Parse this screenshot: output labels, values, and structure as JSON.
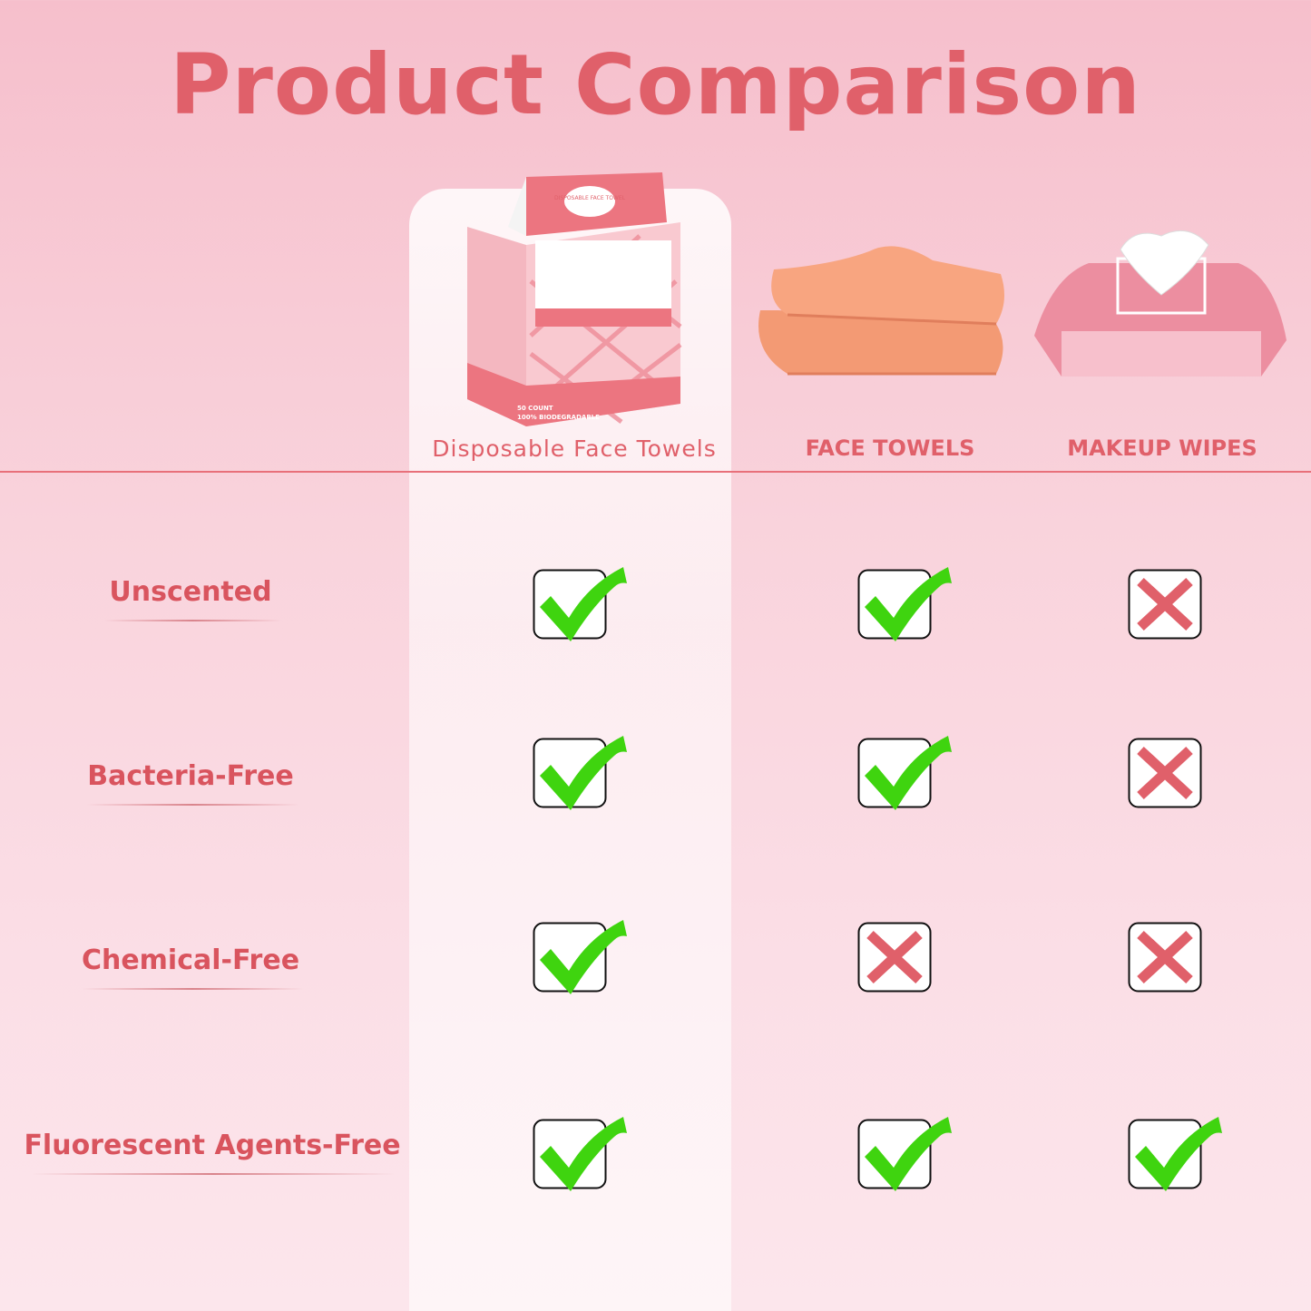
{
  "title": "Product Comparison",
  "columns": [
    {
      "label": "Disposable Face Towels",
      "image": "disposable-face-towel-box",
      "box_text": [
        "DISPOSABLE FACE TOWEL",
        "50 COUNT",
        "100% BIODEGRADABLE"
      ]
    },
    {
      "label": "FACE TOWELS",
      "image": "folded-orange-towels"
    },
    {
      "label": "MAKEUP WIPES",
      "image": "pink-wipes-pack"
    }
  ],
  "rows": [
    {
      "label": "Unscented",
      "values": [
        true,
        true,
        false
      ]
    },
    {
      "label": "Bacteria-Free",
      "values": [
        true,
        true,
        false
      ]
    },
    {
      "label": "Chemical-Free",
      "values": [
        true,
        false,
        false
      ]
    },
    {
      "label": "Fluorescent Agents-Free",
      "values": [
        true,
        true,
        true
      ]
    }
  ],
  "colors": {
    "title": "#e0606a",
    "check": "#3fd40f",
    "cross": "#e0606a",
    "accent_line": "#e8707a"
  }
}
